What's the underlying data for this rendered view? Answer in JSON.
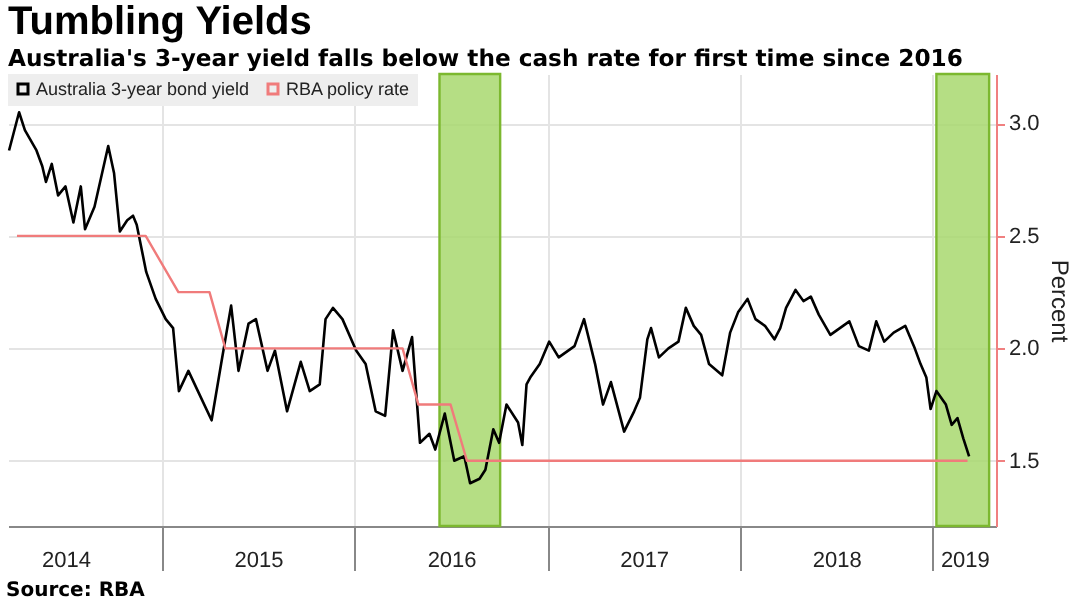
{
  "chart_data": {
    "type": "line",
    "title": "Tumbling Yields",
    "subtitle": "Australia's 3-year yield falls below the cash rate for first time since 2016",
    "ylabel": "Percent",
    "annotations": [
      "Source: RBA"
    ],
    "xlim": [
      "2014-03-15",
      "2019-05-01"
    ],
    "xticks": [
      {
        "value": "2014-07-02",
        "label": "2014"
      },
      {
        "value": "2015-01-01",
        "label": null
      },
      {
        "value": "2015-07-02",
        "label": "2015"
      },
      {
        "value": "2016-01-01",
        "label": null
      },
      {
        "value": "2016-07-02",
        "label": "2016"
      },
      {
        "value": "2017-01-01",
        "label": null
      },
      {
        "value": "2017-07-02",
        "label": "2017"
      },
      {
        "value": "2018-01-01",
        "label": null
      },
      {
        "value": "2018-07-02",
        "label": "2018"
      },
      {
        "value": "2019-01-01",
        "label": null
      },
      {
        "value": "2019-03-02",
        "label": "2019"
      }
    ],
    "ylim": [
      1.21,
      3.22
    ],
    "yticks": [
      1.5,
      {
        "value": 2.0,
        "label": "2.0"
      },
      2.5,
      {
        "value": 3.0,
        "label": "3.0"
      }
    ],
    "grid": true,
    "legend": "top left",
    "line_style": "solid",
    "bands": [
      {
        "axis": "x",
        "from": "2016-06-10",
        "to": "2016-10-03",
        "color": "#a8d86e"
      },
      {
        "axis": "x",
        "from": "2019-01-08",
        "to": "2019-04-18",
        "color": "#a8d86e"
      }
    ],
    "series": [
      {
        "name": "Australia 3-year bond yield",
        "color": "#000000",
        "x": [
          "2014-03-17",
          "2014-04-05",
          "2014-04-16",
          "2014-05-08",
          "2014-05-19",
          "2014-05-26",
          "2014-06-06",
          "2014-06-18",
          "2014-07-02",
          "2014-07-17",
          "2014-07-31",
          "2014-08-08",
          "2014-08-26",
          "2014-09-21",
          "2014-10-02",
          "2014-10-13",
          "2014-10-27",
          "2014-11-07",
          "2014-11-14",
          "2014-12-02",
          "2014-12-20",
          "2015-01-08",
          "2015-01-22",
          "2015-02-02",
          "2015-02-20",
          "2015-03-10",
          "2015-04-05",
          "2015-04-23",
          "2015-05-12",
          "2015-05-26",
          "2015-06-14",
          "2015-06-28",
          "2015-07-20",
          "2015-08-03",
          "2015-08-26",
          "2015-09-21",
          "2015-10-08",
          "2015-10-27",
          "2015-11-07",
          "2015-11-21",
          "2015-12-09",
          "2016-01-04",
          "2016-01-22",
          "2016-02-10",
          "2016-02-28",
          "2016-03-14",
          "2016-04-01",
          "2016-04-19",
          "2016-05-04",
          "2016-05-22",
          "2016-06-02",
          "2016-06-20",
          "2016-07-08",
          "2016-07-27",
          "2016-08-07",
          "2016-08-25",
          "2016-09-05",
          "2016-09-20",
          "2016-10-01",
          "2016-10-15",
          "2016-11-06",
          "2016-11-14",
          "2016-11-22",
          "2016-11-29",
          "2016-12-17",
          "2017-01-04",
          "2017-01-22",
          "2017-02-21",
          "2017-03-11",
          "2017-04-01",
          "2017-04-16",
          "2017-05-01",
          "2017-05-26",
          "2017-06-14",
          "2017-06-25",
          "2017-07-09",
          "2017-07-16",
          "2017-07-31",
          "2017-08-18",
          "2017-09-06",
          "2017-09-20",
          "2017-10-05",
          "2017-10-19",
          "2017-11-03",
          "2017-11-28",
          "2017-12-13",
          "2017-12-28",
          "2018-01-15",
          "2018-01-30",
          "2018-02-17",
          "2018-03-07",
          "2018-03-18",
          "2018-03-29",
          "2018-04-16",
          "2018-05-01",
          "2018-05-15",
          "2018-05-30",
          "2018-06-21",
          "2018-07-09",
          "2018-07-27",
          "2018-08-14",
          "2018-09-02",
          "2018-09-16",
          "2018-10-01",
          "2018-10-19",
          "2018-11-10",
          "2018-11-28",
          "2018-12-09",
          "2018-12-20",
          "2018-12-28",
          "2019-01-08",
          "2019-01-26",
          "2019-02-06",
          "2019-02-17",
          "2019-02-28",
          "2019-03-11"
        ],
        "values": [
          2.88,
          3.05,
          2.97,
          2.88,
          2.81,
          2.74,
          2.82,
          2.68,
          2.72,
          2.56,
          2.72,
          2.53,
          2.63,
          2.9,
          2.78,
          2.52,
          2.57,
          2.59,
          2.55,
          2.34,
          2.22,
          2.13,
          2.09,
          1.81,
          1.9,
          1.81,
          1.68,
          1.93,
          2.19,
          1.9,
          2.11,
          2.13,
          1.9,
          1.99,
          1.72,
          1.94,
          1.81,
          1.84,
          2.13,
          2.18,
          2.13,
          1.99,
          1.93,
          1.72,
          1.7,
          2.08,
          1.9,
          2.05,
          1.58,
          1.62,
          1.55,
          1.71,
          1.5,
          1.52,
          1.4,
          1.42,
          1.46,
          1.64,
          1.58,
          1.75,
          1.67,
          1.57,
          1.84,
          1.87,
          1.93,
          2.03,
          1.96,
          2.01,
          2.13,
          1.93,
          1.75,
          1.85,
          1.63,
          1.72,
          1.78,
          2.04,
          2.09,
          1.96,
          2.0,
          2.03,
          2.18,
          2.1,
          2.06,
          1.93,
          1.88,
          2.07,
          2.16,
          2.22,
          2.13,
          2.1,
          2.04,
          2.09,
          2.18,
          2.26,
          2.21,
          2.23,
          2.15,
          2.06,
          2.09,
          2.12,
          2.01,
          1.99,
          2.12,
          2.03,
          2.07,
          2.1,
          2.0,
          1.93,
          1.87,
          1.73,
          1.81,
          1.75,
          1.66,
          1.69,
          1.6,
          1.52
        ]
      },
      {
        "name": "RBA policy rate",
        "color": "#f07b7b",
        "x": [
          "2014-04-01",
          "2014-12-01",
          "2015-02-01",
          "2015-04-01",
          "2015-05-01",
          "2016-04-01",
          "2016-05-01",
          "2016-07-01",
          "2016-08-01",
          "2019-03-08"
        ],
        "values": [
          2.5,
          2.5,
          2.25,
          2.25,
          2.0,
          2.0,
          1.75,
          1.75,
          1.5,
          1.5
        ]
      }
    ]
  }
}
